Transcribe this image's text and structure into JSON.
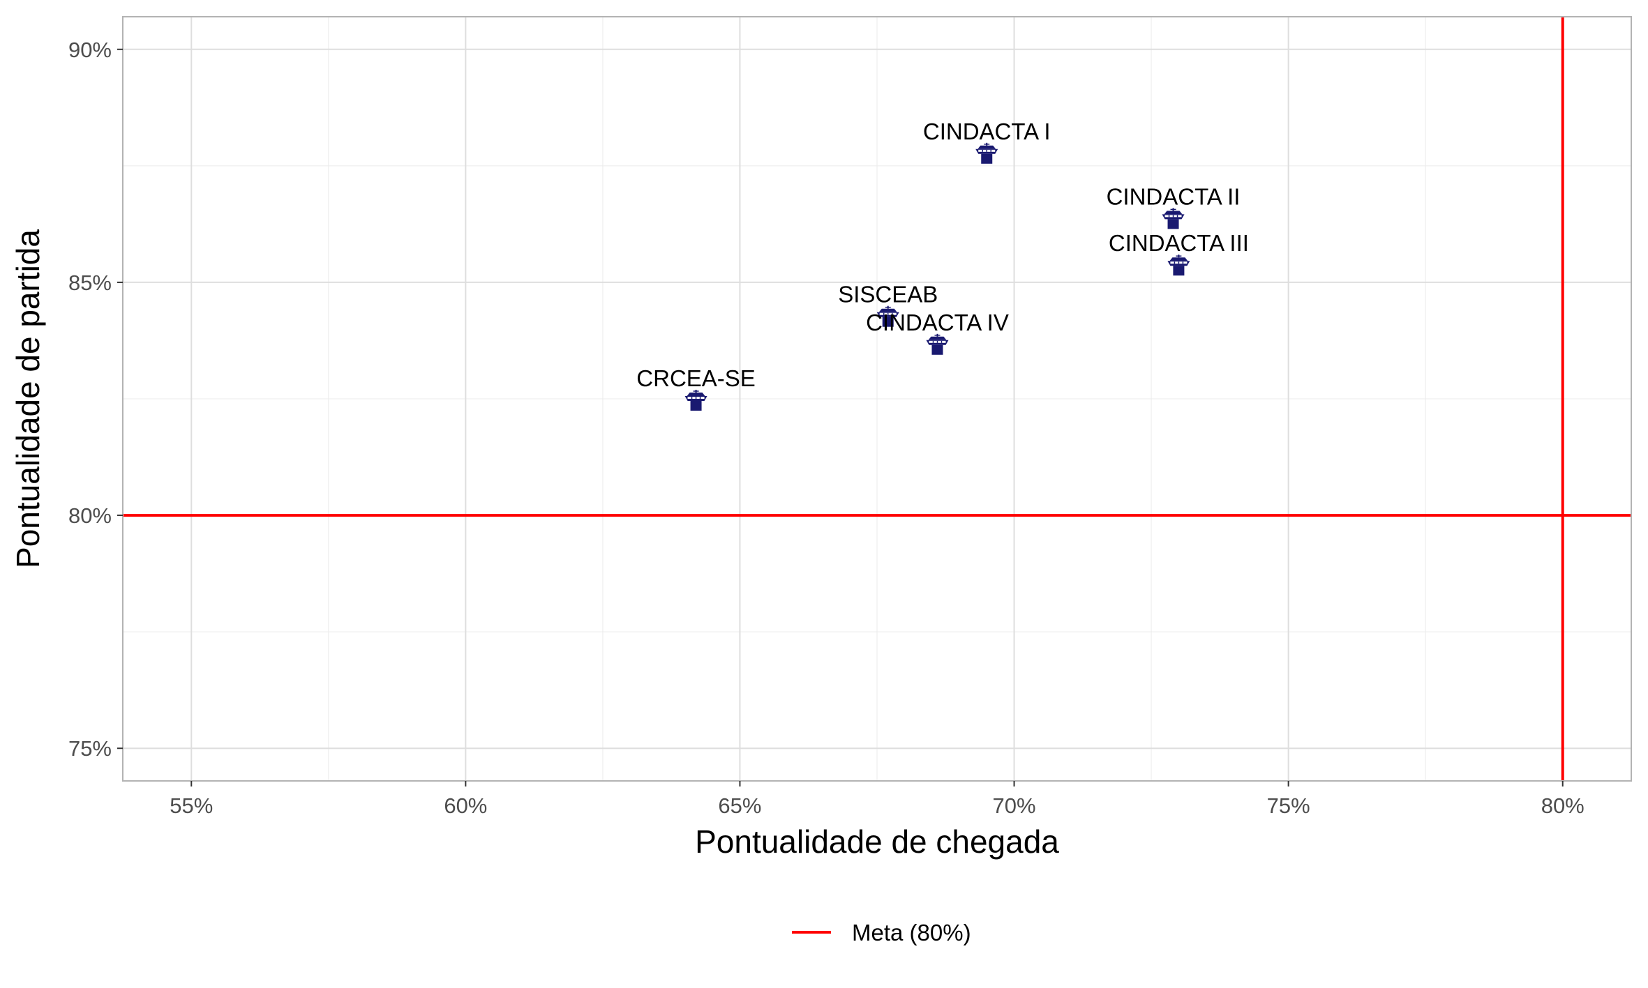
{
  "chart_data": {
    "type": "scatter",
    "title": "",
    "xlabel": "Pontualidade de chegada",
    "ylabel": "Pontualidade de partida",
    "xlim": [
      53.75,
      81.25
    ],
    "ylim": [
      74.3,
      90.7
    ],
    "x_ticks": [
      55,
      60,
      65,
      70,
      75,
      80
    ],
    "y_ticks": [
      75,
      80,
      85,
      90
    ],
    "x_tick_labels": [
      "55%",
      "60%",
      "65%",
      "70%",
      "75%",
      "80%"
    ],
    "y_tick_labels": [
      "75%",
      "80%",
      "85%",
      "90%"
    ],
    "grid": true,
    "marker": "control-tower-icon",
    "marker_color": "#191970",
    "points": [
      {
        "label": "CINDACTA I",
        "x": 69.5,
        "y": 87.8
      },
      {
        "label": "CINDACTA II",
        "x": 72.9,
        "y": 86.4
      },
      {
        "label": "CINDACTA III",
        "x": 73.0,
        "y": 85.4
      },
      {
        "label": "SISCEAB",
        "x": 67.7,
        "y": 84.3
      },
      {
        "label": "CINDACTA IV",
        "x": 68.6,
        "y": 83.7
      },
      {
        "label": "CRCEA-SE",
        "x": 64.2,
        "y": 82.5
      }
    ],
    "reference_lines": {
      "color": "#ff0000",
      "horizontal_y": 80,
      "vertical_x": 80
    },
    "legend": {
      "position": "bottom",
      "entries": [
        {
          "label": "Meta (80%)",
          "color": "#ff0000"
        }
      ]
    }
  }
}
